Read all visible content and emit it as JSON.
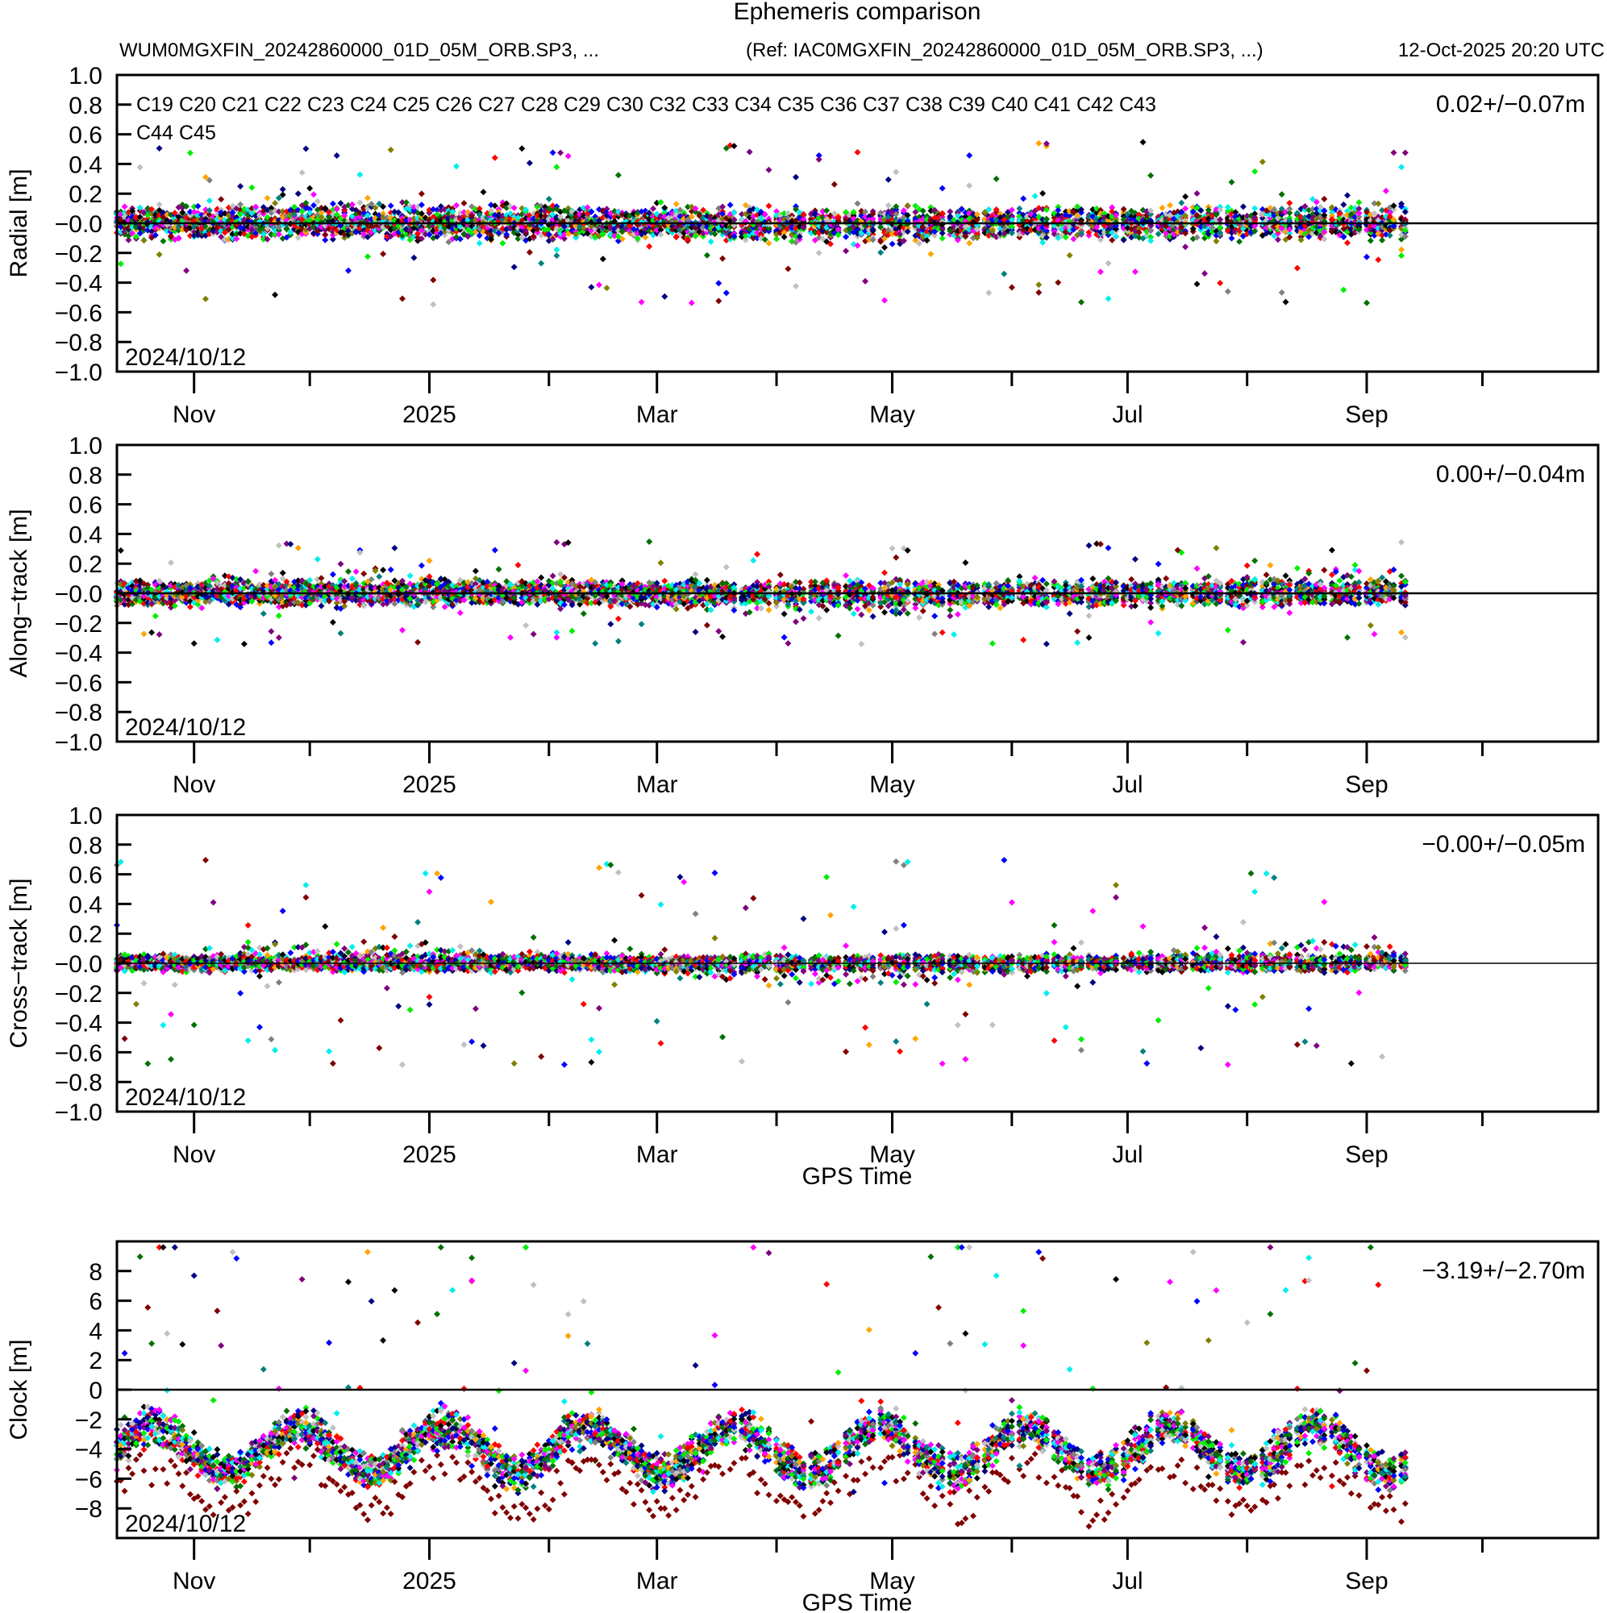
{
  "chart_data": {
    "type": "scatter",
    "title": "Ephemeris comparison",
    "subtitle_left": "WUM0MGXFIN_20242860000_01D_05M_ORB.SP3, ...",
    "subtitle_ref": "(Ref: IAC0MGXFIN_20242860000_01D_05M_ORB.SP3, ...)",
    "timestamp": "12-Oct-2025 20:20 UTC",
    "x_range": [
      "2024-10-12",
      "2025-10-31"
    ],
    "x_ticks": [
      {
        "date": "2024-11-01",
        "label": "Nov"
      },
      {
        "date": "2024-12-01",
        "label": ""
      },
      {
        "date": "2025-01-01",
        "label": "2025"
      },
      {
        "date": "2025-02-01",
        "label": ""
      },
      {
        "date": "2025-03-01",
        "label": "Mar"
      },
      {
        "date": "2025-04-01",
        "label": ""
      },
      {
        "date": "2025-05-01",
        "label": "May"
      },
      {
        "date": "2025-06-01",
        "label": ""
      },
      {
        "date": "2025-07-01",
        "label": "Jul"
      },
      {
        "date": "2025-08-01",
        "label": ""
      },
      {
        "date": "2025-09-01",
        "label": "Sep"
      },
      {
        "date": "2025-10-01",
        "label": ""
      }
    ],
    "legend": [
      {
        "name": "C19",
        "color": "#000000"
      },
      {
        "name": "C20",
        "color": "#ff0000"
      },
      {
        "name": "C21",
        "color": "#0000ff"
      },
      {
        "name": "C22",
        "color": "#00ee00"
      },
      {
        "name": "C23",
        "color": "#000080"
      },
      {
        "name": "C24",
        "color": "#800080"
      },
      {
        "name": "C25",
        "color": "#007000"
      },
      {
        "name": "C26",
        "color": "#00eeee"
      },
      {
        "name": "C27",
        "color": "#ff00ff"
      },
      {
        "name": "C28",
        "color": "#c0c0c0"
      },
      {
        "name": "C29",
        "color": "#800000"
      },
      {
        "name": "C30",
        "color": "#ffa500"
      },
      {
        "name": "C32",
        "color": "#808080"
      },
      {
        "name": "C33",
        "color": "#808000"
      },
      {
        "name": "C34",
        "color": "#008080"
      },
      {
        "name": "C35",
        "color": "#000000"
      },
      {
        "name": "C36",
        "color": "#ff0000"
      },
      {
        "name": "C37",
        "color": "#0000ff"
      },
      {
        "name": "C38",
        "color": "#00ee00"
      },
      {
        "name": "C39",
        "color": "#000080"
      },
      {
        "name": "C40",
        "color": "#800080"
      },
      {
        "name": "C41",
        "color": "#007000"
      },
      {
        "name": "C42",
        "color": "#00eeee"
      },
      {
        "name": "C43",
        "color": "#ff00ff"
      },
      {
        "name": "C44",
        "color": "#c0c0c0"
      },
      {
        "name": "C45",
        "color": "#800000"
      }
    ],
    "panels": [
      {
        "ylabel": "Radial [m]",
        "ylim": [
          -1.0,
          1.0
        ],
        "yticks": [
          "1.0",
          "0.8",
          "0.6",
          "0.4",
          "0.2",
          "-0.0",
          "-0.2",
          "-0.4",
          "-0.6",
          "-0.8",
          "-1.0"
        ],
        "stat": "0.02+/-0.07m",
        "date_label": "2024/10/12",
        "xlabel": "",
        "spread": 0.15,
        "outlier": 0.55
      },
      {
        "ylabel": "Along-track [m]",
        "ylim": [
          -1.0,
          1.0
        ],
        "yticks": [
          "1.0",
          "0.8",
          "0.6",
          "0.4",
          "0.2",
          "-0.0",
          "-0.2",
          "-0.4",
          "-0.6",
          "-0.8",
          "-1.0"
        ],
        "stat": "0.00+/-0.04m",
        "date_label": "2024/10/12",
        "xlabel": "",
        "spread": 0.12,
        "outlier": 0.35
      },
      {
        "ylabel": "Cross-track [m]",
        "ylim": [
          -1.0,
          1.0
        ],
        "yticks": [
          "1.0",
          "0.8",
          "0.6",
          "0.4",
          "0.2",
          "-0.0",
          "-0.2",
          "-0.4",
          "-0.6",
          "-0.8",
          "-1.0"
        ],
        "stat": "-0.00+/-0.05m",
        "date_label": "2024/10/12",
        "xlabel": "GPS Time",
        "spread": 0.08,
        "outlier": 0.7
      },
      {
        "ylabel": "Clock [m]",
        "ylim": [
          -10,
          10
        ],
        "yticks": [
          "8",
          "6",
          "4",
          "2",
          "0",
          "-2",
          "-4",
          "-6",
          "-8"
        ],
        "ytick_values": [
          8,
          6,
          4,
          2,
          0,
          -2,
          -4,
          -6,
          -8
        ],
        "stat": "-3.19+/-2.70m",
        "date_label": "2024/10/12",
        "xlabel": "GPS Time",
        "base": -4.0,
        "spread": 1.2
      }
    ],
    "data_gaps_note": "Data present from 2024-10-12 to approx 2025-09-12; denser continuous until mid-March then daily arcs with gaps",
    "data_end": "2025-09-12"
  }
}
